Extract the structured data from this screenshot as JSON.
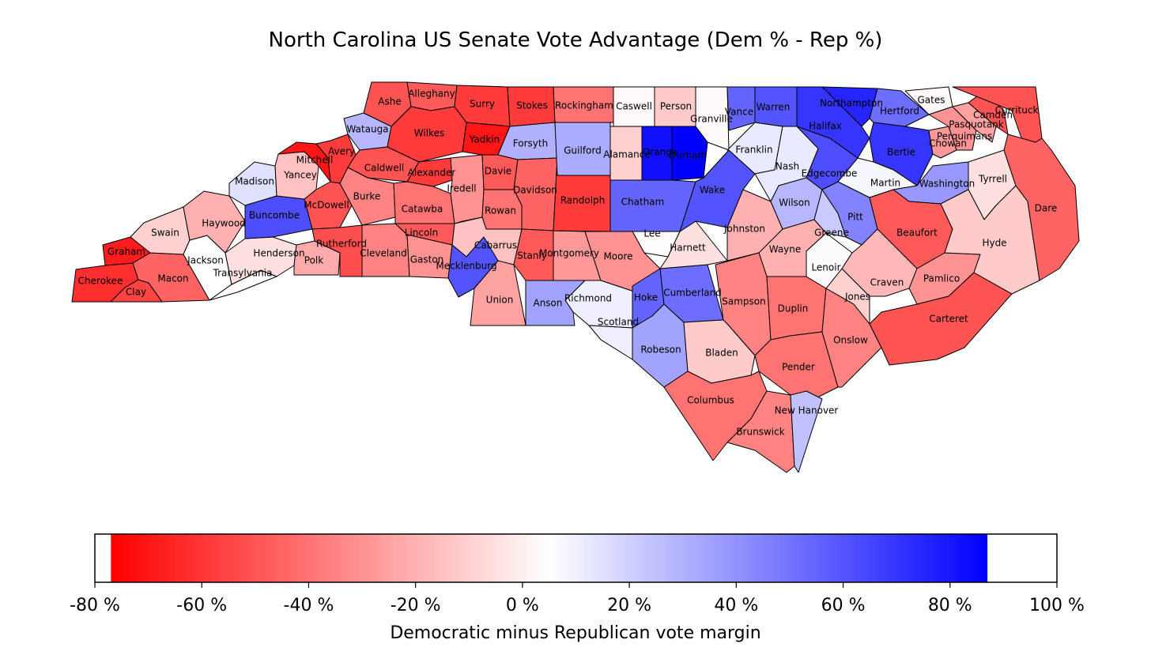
{
  "title": "North Carolina US Senate Vote Advantage (Dem % - Rep %)",
  "colorbar": {
    "label": "Democratic minus Republican vote margin",
    "ticks": [
      "-80 %",
      "-60 %",
      "-40 %",
      "-20 %",
      "0 %",
      "20 %",
      "40 %",
      "60 %",
      "80 %",
      "100 %"
    ],
    "tick_values": [
      -80,
      -60,
      -40,
      -20,
      0,
      20,
      40,
      60,
      80,
      100
    ],
    "range": [
      -80,
      100
    ],
    "color_range": [
      -77,
      87
    ],
    "center_value": 5,
    "color_low": "#ff0000",
    "color_mid": "#ffffff",
    "color_high": "#0000ff"
  },
  "counties": [
    {
      "name": "Cherokee",
      "margin": -62
    },
    {
      "name": "Graham",
      "margin": -68
    },
    {
      "name": "Clay",
      "margin": -55
    },
    {
      "name": "Macon",
      "margin": -45
    },
    {
      "name": "Swain",
      "margin": -10
    },
    {
      "name": "Jackson",
      "margin": 5
    },
    {
      "name": "Haywood",
      "margin": -20
    },
    {
      "name": "Transylvania",
      "margin": 4
    },
    {
      "name": "Henderson",
      "margin": -5
    },
    {
      "name": "Polk",
      "margin": -22
    },
    {
      "name": "Madison",
      "margin": 15
    },
    {
      "name": "Buncombe",
      "margin": 62
    },
    {
      "name": "Yancey",
      "margin": -15
    },
    {
      "name": "Mitchell",
      "margin": -70
    },
    {
      "name": "McDowell",
      "margin": -50
    },
    {
      "name": "Rutherford",
      "margin": -52
    },
    {
      "name": "Avery",
      "margin": -58
    },
    {
      "name": "Watauga",
      "margin": 28
    },
    {
      "name": "Ashe",
      "margin": -50
    },
    {
      "name": "Alleghany",
      "margin": -48
    },
    {
      "name": "Wilkes",
      "margin": -58
    },
    {
      "name": "Caldwell",
      "margin": -50
    },
    {
      "name": "Burke",
      "margin": -35
    },
    {
      "name": "Alexander",
      "margin": -58
    },
    {
      "name": "Catawba",
      "margin": -40
    },
    {
      "name": "Cleveland",
      "margin": -35
    },
    {
      "name": "Lincoln",
      "margin": -48
    },
    {
      "name": "Gaston",
      "margin": -30
    },
    {
      "name": "Iredell",
      "margin": -30
    },
    {
      "name": "Surry",
      "margin": -58
    },
    {
      "name": "Yadkin",
      "margin": -70
    },
    {
      "name": "Stokes",
      "margin": -58
    },
    {
      "name": "Davie",
      "margin": -48
    },
    {
      "name": "Forsyth",
      "margin": 30
    },
    {
      "name": "Davidson",
      "margin": -45
    },
    {
      "name": "Rowan",
      "margin": -40
    },
    {
      "name": "Cabarrus",
      "margin": -15
    },
    {
      "name": "Mecklenburg",
      "margin": 60
    },
    {
      "name": "Union",
      "margin": -25
    },
    {
      "name": "Stanly",
      "margin": -48
    },
    {
      "name": "Montgomery",
      "margin": -28
    },
    {
      "name": "Randolph",
      "margin": -58
    },
    {
      "name": "Guilford",
      "margin": 32
    },
    {
      "name": "Rockingham",
      "margin": -40
    },
    {
      "name": "Caswell",
      "margin": 3
    },
    {
      "name": "Person",
      "margin": -12
    },
    {
      "name": "Alamance",
      "margin": -10
    },
    {
      "name": "Orange",
      "margin": 82
    },
    {
      "name": "Durham",
      "margin": 87
    },
    {
      "name": "Granville",
      "margin": 3
    },
    {
      "name": "Chatham",
      "margin": 55
    },
    {
      "name": "Lee",
      "margin": 4
    },
    {
      "name": "Moore",
      "margin": -30
    },
    {
      "name": "Richmond",
      "margin": 10
    },
    {
      "name": "Anson",
      "margin": 35
    },
    {
      "name": "Scotland",
      "margin": 10
    },
    {
      "name": "Hoke",
      "margin": 55
    },
    {
      "name": "Cumberland",
      "margin": 52
    },
    {
      "name": "Harnett",
      "margin": -5
    },
    {
      "name": "Wake",
      "margin": 60
    },
    {
      "name": "Johnston",
      "margin": -20
    },
    {
      "name": "Franklin",
      "margin": 12
    },
    {
      "name": "Vance",
      "margin": 55
    },
    {
      "name": "Warren",
      "margin": 60
    },
    {
      "name": "Nash",
      "margin": 12
    },
    {
      "name": "Wilson",
      "margin": 28
    },
    {
      "name": "Wayne",
      "margin": -20
    },
    {
      "name": "Sampson",
      "margin": -35
    },
    {
      "name": "Robeson",
      "margin": 35
    },
    {
      "name": "Bladen",
      "margin": -12
    },
    {
      "name": "Duplin",
      "margin": -40
    },
    {
      "name": "Pender",
      "margin": -40
    },
    {
      "name": "Columbus",
      "margin": -40
    },
    {
      "name": "Brunswick",
      "margin": -35
    },
    {
      "name": "New Hanover",
      "margin": 25
    },
    {
      "name": "Onslow",
      "margin": -35
    },
    {
      "name": "Jones",
      "margin": -10
    },
    {
      "name": "Lenoir",
      "margin": 6
    },
    {
      "name": "Greene",
      "margin": 22
    },
    {
      "name": "Pitt",
      "margin": 45
    },
    {
      "name": "Edgecombe",
      "margin": 62
    },
    {
      "name": "Halifax",
      "margin": 70
    },
    {
      "name": "Northampton",
      "margin": 75
    },
    {
      "name": "Hertford",
      "margin": 52
    },
    {
      "name": "Bertie",
      "margin": 70
    },
    {
      "name": "Martin",
      "margin": 8
    },
    {
      "name": "Gates",
      "margin": 3
    },
    {
      "name": "Chowan",
      "margin": -28
    },
    {
      "name": "Perquimans",
      "margin": -30
    },
    {
      "name": "Pasquotank",
      "margin": -25
    },
    {
      "name": "Camden",
      "margin": -50
    },
    {
      "name": "Currituck",
      "margin": -50
    },
    {
      "name": "Washington",
      "margin": 38
    },
    {
      "name": "Tyrrell",
      "margin": -5
    },
    {
      "name": "Beaufort",
      "margin": -48
    },
    {
      "name": "Craven",
      "margin": -18
    },
    {
      "name": "Pamlico",
      "margin": -30
    },
    {
      "name": "Carteret",
      "margin": -50
    },
    {
      "name": "Hyde",
      "margin": -12
    },
    {
      "name": "Dare",
      "margin": -45
    }
  ]
}
